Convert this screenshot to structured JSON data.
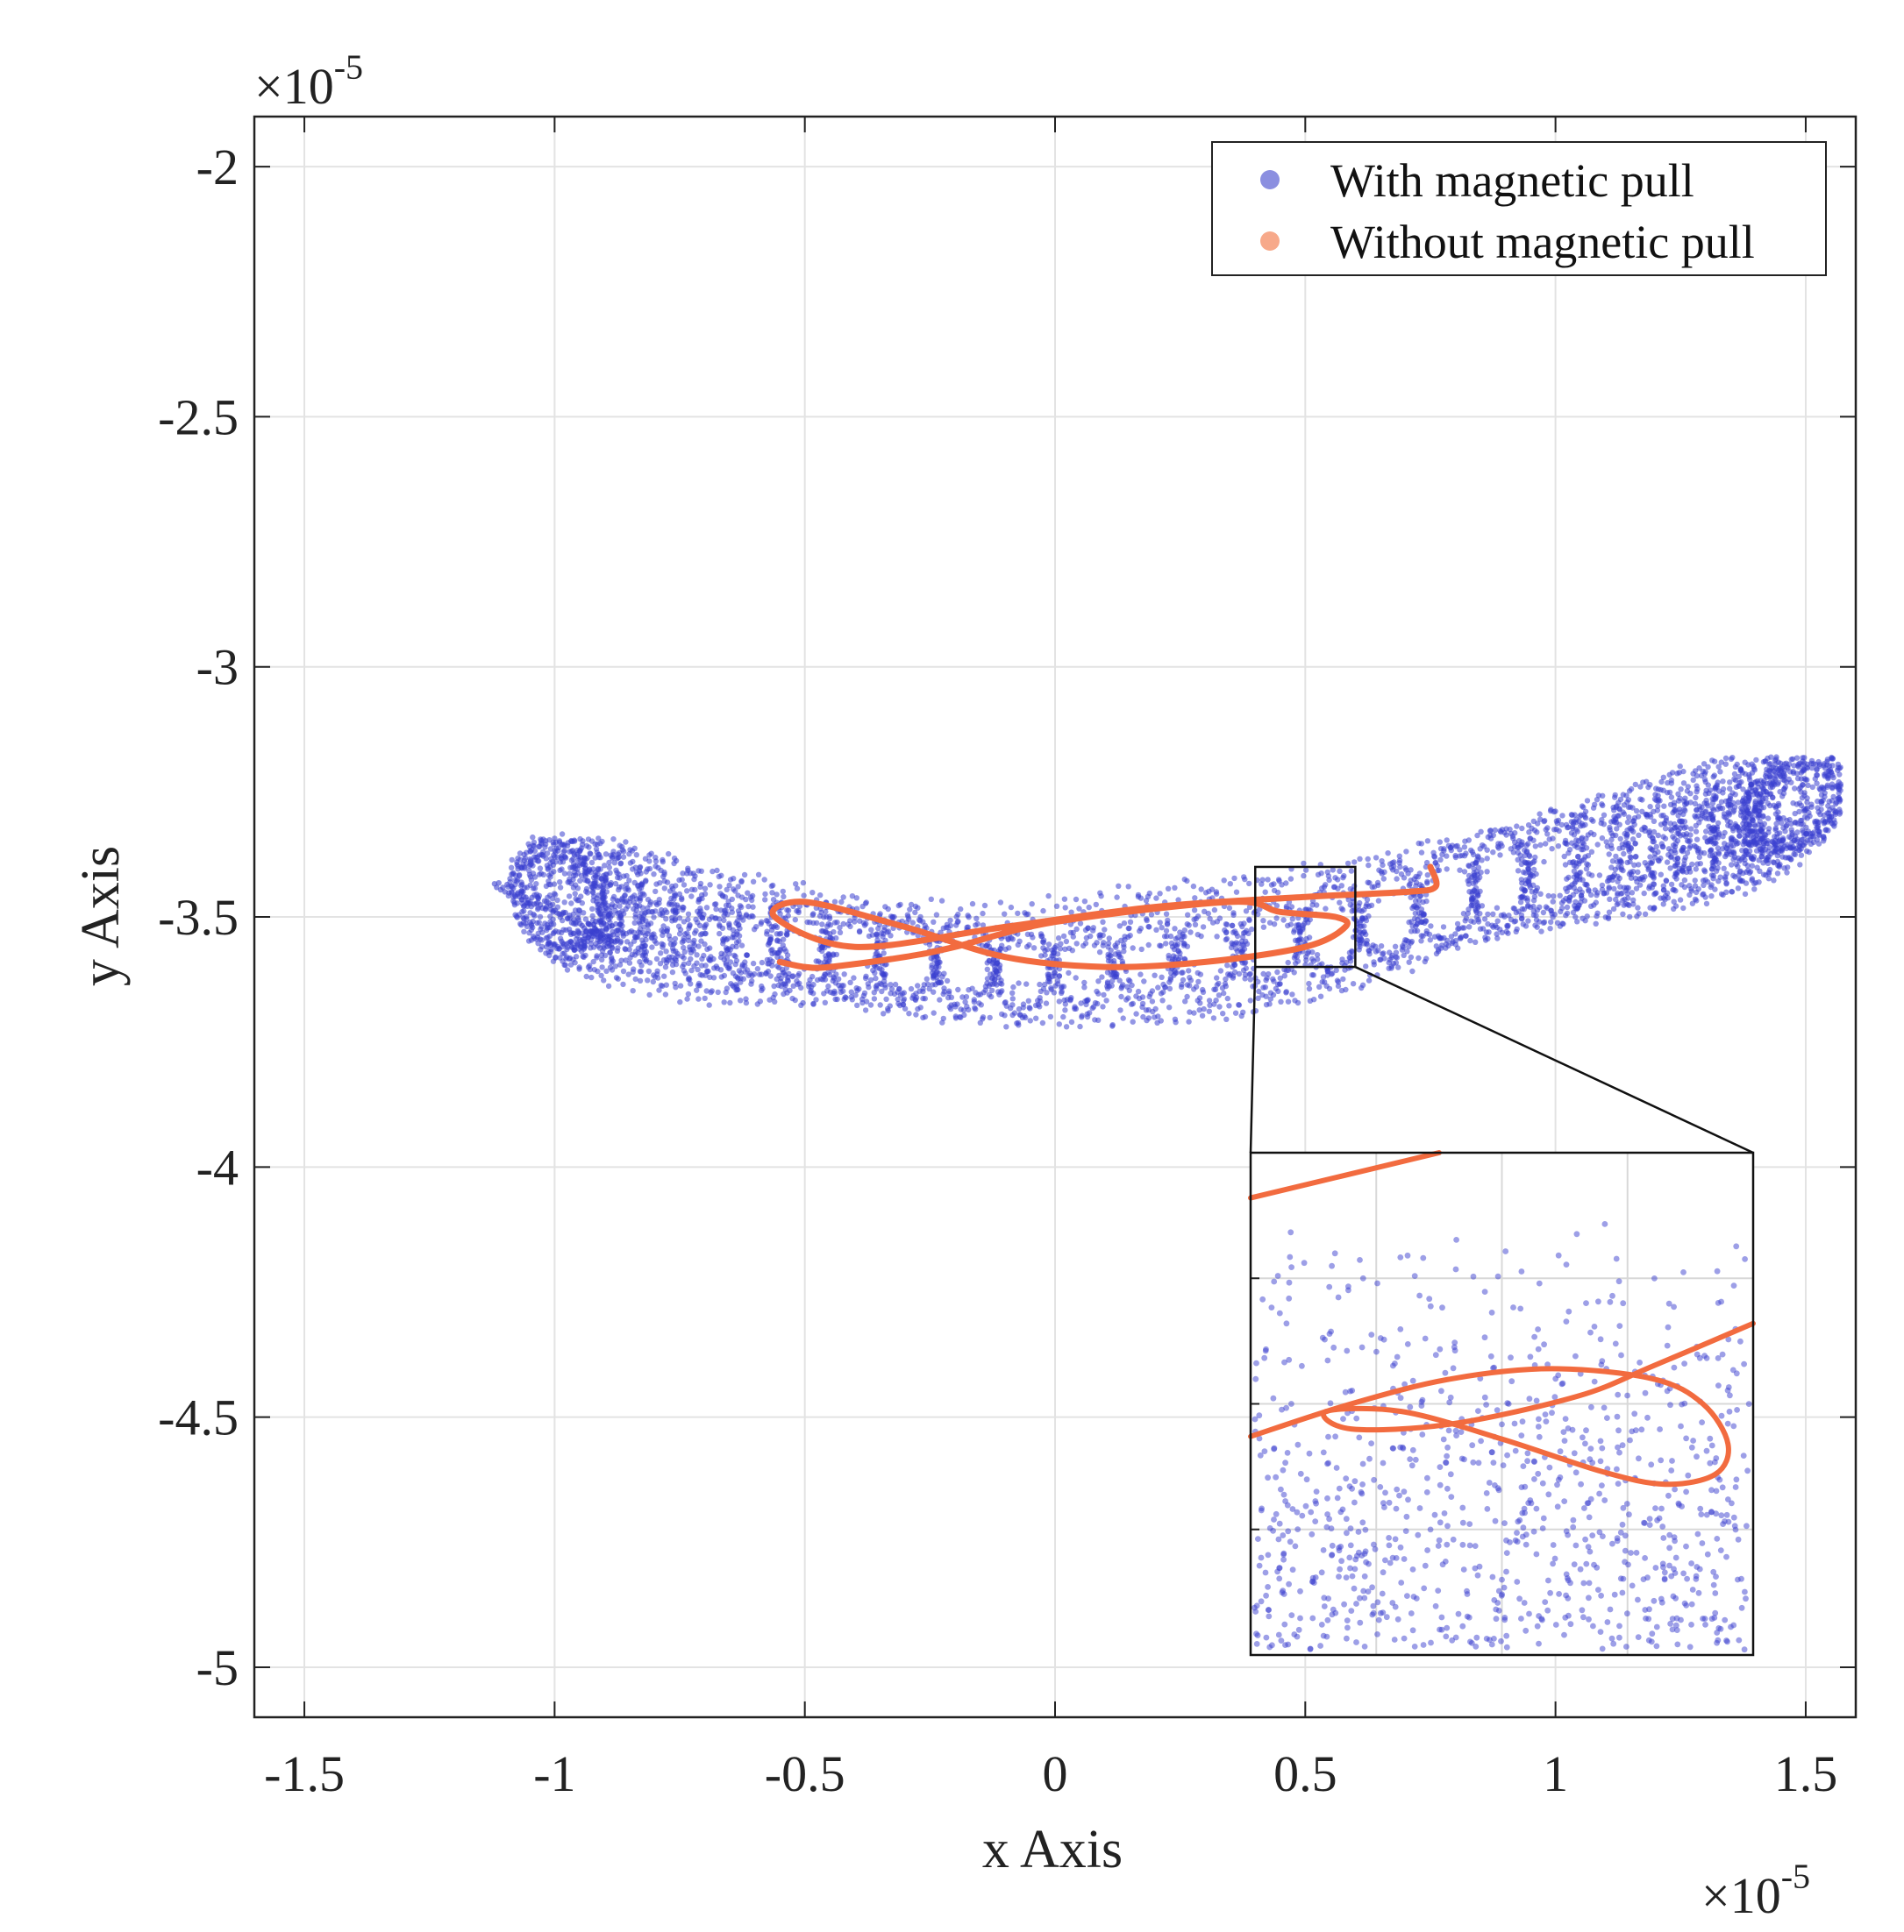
{
  "chart_data": {
    "type": "scatter",
    "title": "",
    "xlabel": "x Axis",
    "ylabel": "y Axis",
    "x_multiplier": "×10",
    "x_exponent": "-5",
    "y_multiplier": "×10",
    "y_exponent": "-5",
    "xlim": [
      -1.6,
      1.6
    ],
    "ylim": [
      -5.1,
      -1.9
    ],
    "x_ticks": [
      -1.5,
      -1,
      -0.5,
      0,
      0.5,
      1,
      1.5
    ],
    "x_tick_labels": [
      "-1.5",
      "-1",
      "-0.5",
      "0",
      "0.5",
      "1",
      "1.5"
    ],
    "y_ticks": [
      -2,
      -2.5,
      -3,
      -3.5,
      -4,
      -4.5,
      -5
    ],
    "y_tick_labels": [
      "-2",
      "-2.5",
      "-3",
      "-3.5",
      "-4",
      "-4.5",
      "-5"
    ],
    "grid": true,
    "legend_position": "top-right",
    "series": [
      {
        "name": "With magnetic pull",
        "marker": "dot",
        "color": "#3b3fcf",
        "legend_color": "#8b8fe0",
        "x_range": [
          -1.12,
          1.57
        ],
        "y_range": [
          -3.72,
          -3.18
        ],
        "x": [
          -1.12,
          -1.0,
          -0.85,
          -0.7,
          -0.5,
          -0.3,
          -0.1,
          0.0,
          0.2,
          0.4,
          0.6,
          0.8,
          1.0,
          1.2,
          1.4,
          1.5,
          1.57
        ],
        "y_center": [
          -3.43,
          -3.47,
          -3.5,
          -3.54,
          -3.56,
          -3.58,
          -3.6,
          -3.6,
          -3.58,
          -3.56,
          -3.52,
          -3.46,
          -3.41,
          -3.36,
          -3.3,
          -3.25,
          -3.24
        ]
      },
      {
        "name": "Without magnetic pull",
        "marker": "line",
        "color": "#f26b3f",
        "legend_color": "#f7a98a",
        "x": [
          0.75,
          0.76,
          0.7,
          0.5,
          0.2,
          -0.1,
          -0.4,
          -0.56,
          -0.5,
          -0.3,
          -0.1,
          0.1,
          0.3,
          0.5,
          0.58,
          0.56,
          0.45,
          0.35,
          0.0,
          -0.2,
          -0.3,
          -0.45,
          -0.5,
          -0.55
        ],
        "y": [
          -3.4,
          -3.44,
          -3.45,
          -3.46,
          -3.48,
          -3.52,
          -3.56,
          -3.5,
          -3.47,
          -3.52,
          -3.58,
          -3.6,
          -3.59,
          -3.56,
          -3.52,
          -3.5,
          -3.49,
          -3.47,
          -3.51,
          -3.56,
          -3.58,
          -3.6,
          -3.6,
          -3.59
        ]
      }
    ],
    "inset": {
      "source_xlim": [
        0.4,
        0.6
      ],
      "source_ylim": [
        -3.6,
        -3.4
      ],
      "position": "bottom-right",
      "without_pull_x": [
        0.4,
        0.44,
        0.48,
        0.52,
        0.56,
        0.58,
        0.59,
        0.585,
        0.565,
        0.54,
        0.5,
        0.46,
        0.43,
        0.44,
        0.48,
        0.53,
        0.56,
        0.6
      ],
      "without_pull_y": [
        -3.513,
        -3.5,
        -3.49,
        -3.486,
        -3.49,
        -3.5,
        -3.516,
        -3.528,
        -3.532,
        -3.527,
        -3.514,
        -3.503,
        -3.503,
        -3.51,
        -3.508,
        -3.497,
        -3.485,
        -3.468
      ],
      "without_pull_top_x": [
        0.4,
        0.475
      ],
      "without_pull_top_y": [
        -3.418,
        -3.4
      ]
    }
  },
  "legend": {
    "with_label": "With magnetic pull",
    "without_label": "Without magnetic pull"
  }
}
